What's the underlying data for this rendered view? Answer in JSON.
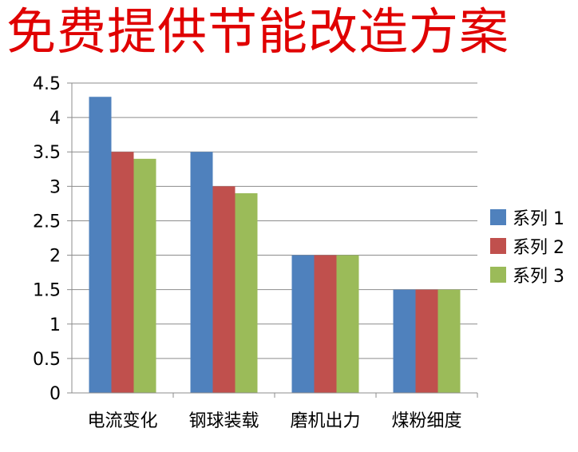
{
  "title": "免费提供节能改造方案",
  "chart_data": {
    "type": "bar",
    "title": "免费提供节能改造方案",
    "xlabel": "",
    "ylabel": "",
    "categories": [
      "电流变化",
      "钢球装载",
      "磨机出力",
      "煤粉细度"
    ],
    "series": [
      {
        "name": "系列 1",
        "color": "#4F81BD",
        "values": [
          4.3,
          3.5,
          2.0,
          1.5
        ]
      },
      {
        "name": "系列 2",
        "color": "#C0504D",
        "values": [
          3.5,
          3.0,
          2.0,
          1.5
        ]
      },
      {
        "name": "系列 3",
        "color": "#9BBB59",
        "values": [
          3.4,
          2.9,
          2.0,
          1.5
        ]
      }
    ],
    "ylim": [
      0,
      4.5
    ],
    "yticks": [
      "0",
      "0.5",
      "1",
      "1.5",
      "2",
      "2.5",
      "3",
      "3.5",
      "4",
      "4.5"
    ],
    "grid": true,
    "legend_position": "right"
  }
}
